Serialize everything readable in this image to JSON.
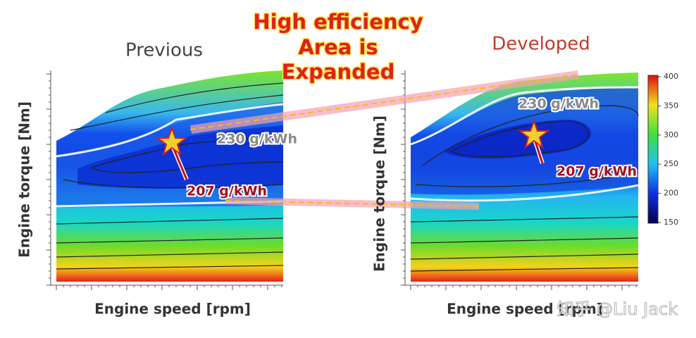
{
  "headline": [
    "High efficiency",
    "Area is",
    "Expanded"
  ],
  "panels": [
    {
      "title": "Previous",
      "x_label": "Engine speed [rpm]",
      "y_label": "Engine torque [Nm]",
      "annotations": [
        "230 g/kWh",
        "207 g/kWh"
      ]
    },
    {
      "title": "Developed",
      "x_label": "Engine speed [rpm]",
      "y_label": "Engine torque [Nm]",
      "annotations": [
        "230 g/kWh",
        "207 g/kWh"
      ]
    }
  ],
  "colorbar": {
    "lim": [
      150,
      400
    ],
    "ticks": [
      150,
      200,
      250,
      300,
      350,
      400
    ]
  },
  "watermark": "知乎 @Liu Jack"
}
